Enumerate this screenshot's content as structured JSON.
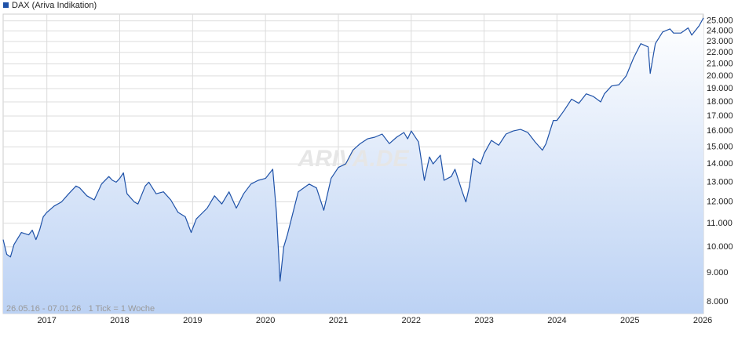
{
  "chart_data": {
    "type": "line",
    "legend": "DAX (Ariva Indikation)",
    "footnote": "26.05.16 - 07.01.26   1 Tick = 1 Woche",
    "watermark": "ARIVA.DE",
    "log_scale": true,
    "grid": true,
    "y_axis_side": "right",
    "xlim": [
      2016.4,
      2026.01
    ],
    "xticks": [
      2017,
      2018,
      2019,
      2020,
      2021,
      2022,
      2023,
      2024,
      2025,
      2026
    ],
    "ylim": [
      7630,
      25700
    ],
    "yticks": [
      {
        "value": 8000,
        "label": "8.000"
      },
      {
        "value": 9000,
        "label": "9.000"
      },
      {
        "value": 10000,
        "label": "10.000"
      },
      {
        "value": 11000,
        "label": "11.000"
      },
      {
        "value": 12000,
        "label": "12.000"
      },
      {
        "value": 13000,
        "label": "13.000"
      },
      {
        "value": 14000,
        "label": "14.000"
      },
      {
        "value": 15000,
        "label": "15.000"
      },
      {
        "value": 16000,
        "label": "16.000"
      },
      {
        "value": 17000,
        "label": "17.000"
      },
      {
        "value": 18000,
        "label": "18.000"
      },
      {
        "value": 19000,
        "label": "19.000"
      },
      {
        "value": 20000,
        "label": "20.000"
      },
      {
        "value": 21000,
        "label": "21.000"
      },
      {
        "value": 22000,
        "label": "22.000"
      },
      {
        "value": 23000,
        "label": "23.000"
      },
      {
        "value": 24000,
        "label": "24.000"
      },
      {
        "value": 25000,
        "label": "25.000"
      }
    ],
    "x": [
      2016.4,
      2016.45,
      2016.5,
      2016.55,
      2016.65,
      2016.75,
      2016.8,
      2016.85,
      2016.9,
      2016.95,
      2017.0,
      2017.1,
      2017.2,
      2017.3,
      2017.4,
      2017.45,
      2017.55,
      2017.65,
      2017.75,
      2017.85,
      2017.9,
      2017.95,
      2018.0,
      2018.05,
      2018.1,
      2018.2,
      2018.25,
      2018.35,
      2018.4,
      2018.5,
      2018.6,
      2018.7,
      2018.8,
      2018.9,
      2018.98,
      2019.05,
      2019.2,
      2019.3,
      2019.4,
      2019.5,
      2019.6,
      2019.7,
      2019.8,
      2019.9,
      2020.0,
      2020.1,
      2020.15,
      2020.2,
      2020.25,
      2020.3,
      2020.4,
      2020.45,
      2020.6,
      2020.7,
      2020.8,
      2020.9,
      2021.0,
      2021.1,
      2021.2,
      2021.3,
      2021.4,
      2021.5,
      2021.6,
      2021.7,
      2021.8,
      2021.9,
      2021.95,
      2022.0,
      2022.1,
      2022.18,
      2022.25,
      2022.3,
      2022.4,
      2022.45,
      2022.55,
      2022.6,
      2022.7,
      2022.75,
      2022.8,
      2022.85,
      2022.95,
      2023.0,
      2023.1,
      2023.2,
      2023.3,
      2023.4,
      2023.5,
      2023.6,
      2023.7,
      2023.8,
      2023.85,
      2023.95,
      2024.0,
      2024.1,
      2024.2,
      2024.3,
      2024.4,
      2024.5,
      2024.6,
      2024.65,
      2024.75,
      2024.85,
      2024.95,
      2025.05,
      2025.15,
      2025.25,
      2025.28,
      2025.35,
      2025.45,
      2025.55,
      2025.6,
      2025.7,
      2025.8,
      2025.85,
      2025.95,
      2026.01
    ],
    "series": [
      {
        "name": "DAX (Ariva Indikation)",
        "color": "#1f52a8",
        "values": [
          10300,
          9700,
          9600,
          10100,
          10600,
          10500,
          10700,
          10300,
          10700,
          11300,
          11500,
          11800,
          12000,
          12400,
          12800,
          12700,
          12300,
          12100,
          12900,
          13300,
          13100,
          13000,
          13200,
          13500,
          12400,
          12000,
          11900,
          12800,
          13000,
          12400,
          12500,
          12100,
          11500,
          11300,
          10600,
          11200,
          11700,
          12300,
          11900,
          12500,
          11700,
          12400,
          12900,
          13100,
          13200,
          13700,
          11500,
          8700,
          10000,
          10500,
          11800,
          12500,
          12900,
          12700,
          11600,
          13200,
          13800,
          14000,
          14800,
          15200,
          15500,
          15600,
          15800,
          15200,
          15600,
          15900,
          15500,
          16000,
          15300,
          13100,
          14400,
          14000,
          14500,
          13100,
          13300,
          13700,
          12500,
          12000,
          12800,
          14300,
          14000,
          14600,
          15400,
          15100,
          15800,
          16000,
          16100,
          15900,
          15300,
          14800,
          15200,
          16700,
          16700,
          17400,
          18200,
          17900,
          18600,
          18400,
          18000,
          18600,
          19200,
          19300,
          20000,
          21500,
          22800,
          22500,
          20200,
          22800,
          23900,
          24200,
          23800,
          23800,
          24300,
          23600,
          24500,
          25300
        ]
      }
    ]
  }
}
